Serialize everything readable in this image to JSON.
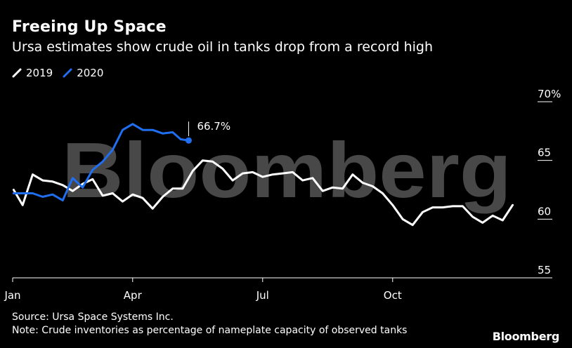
{
  "header": {
    "title": "Freeing Up Space",
    "subtitle": "Ursa estimates show crude oil in tanks drop from a record high"
  },
  "legend": [
    {
      "label": "2019",
      "color": "#ffffff"
    },
    {
      "label": "2020",
      "color": "#1f6ff0"
    }
  ],
  "watermark": "Bloomberg",
  "footer": {
    "source": "Source: Ursa Space Systems Inc.",
    "note": "Note: Crude inventories as percentage of nameplate capacity of observed tanks",
    "brand": "Bloomberg"
  },
  "chart_data": {
    "type": "line",
    "title": "Freeing Up Space",
    "subtitle": "Ursa estimates show crude oil in tanks drop from a record high",
    "xlabel": "",
    "ylabel": "",
    "x_unit": "week of year",
    "xlim": [
      1,
      53
    ],
    "ylim": [
      55,
      70
    ],
    "x_ticks": [
      {
        "label": "Jan",
        "x": 1
      },
      {
        "label": "Apr",
        "x": 13
      },
      {
        "label": "Jul",
        "x": 26
      },
      {
        "label": "Oct",
        "x": 39
      }
    ],
    "y_ticks": [
      {
        "label": "70%",
        "value": 70
      },
      {
        "label": "65",
        "value": 65
      },
      {
        "label": "60",
        "value": 60
      },
      {
        "label": "55",
        "value": 55
      }
    ],
    "annotation": {
      "label": "66.7%",
      "series": "2020",
      "x": 18.6,
      "y": 66.7
    },
    "series": [
      {
        "name": "2019",
        "color": "#ffffff",
        "x": [
          1.1,
          2.0,
          3.0,
          4.0,
          5.0,
          6.0,
          7.0,
          8.0,
          9.0,
          10.0,
          11.0,
          12.0,
          13.0,
          14.0,
          15.0,
          16.0,
          17.0,
          18.0,
          19.0,
          20.0,
          21.0,
          22.0,
          23.0,
          24.0,
          25.0,
          26.0,
          27.0,
          28.0,
          29.0,
          30.0,
          31.0,
          32.0,
          33.0,
          34.0,
          35.0,
          36.0,
          37.0,
          38.0,
          39.0,
          40.0,
          41.0,
          42.0,
          43.0,
          44.0,
          45.0,
          46.0,
          47.0,
          48.0,
          49.0,
          50.0,
          51.0
        ],
        "values": [
          62.5,
          61.2,
          63.8,
          63.3,
          63.2,
          62.9,
          62.4,
          63.0,
          63.4,
          62.0,
          62.2,
          61.5,
          62.1,
          61.8,
          60.9,
          61.9,
          62.6,
          62.6,
          64.1,
          65.0,
          64.9,
          64.3,
          63.3,
          63.9,
          64.0,
          63.6,
          63.8,
          63.9,
          64.0,
          63.3,
          63.5,
          62.4,
          62.7,
          62.6,
          63.8,
          63.1,
          62.8,
          62.2,
          61.2,
          60.0,
          59.5,
          60.6,
          61.0,
          61.0,
          61.1,
          61.1,
          60.2,
          59.7,
          60.3,
          59.9,
          61.2
        ]
      },
      {
        "name": "2020",
        "color": "#1f6ff0",
        "x": [
          1.1,
          2.0,
          3.0,
          4.0,
          5.0,
          6.0,
          7.0,
          8.0,
          9.0,
          10.0,
          11.0,
          12.0,
          13.0,
          14.0,
          15.0,
          16.0,
          17.0,
          17.8,
          18.6
        ],
        "values": [
          62.2,
          62.2,
          62.2,
          61.9,
          62.1,
          61.6,
          63.5,
          62.7,
          64.2,
          64.9,
          65.9,
          67.6,
          68.1,
          67.6,
          67.6,
          67.3,
          67.4,
          66.8,
          66.7
        ]
      }
    ]
  }
}
